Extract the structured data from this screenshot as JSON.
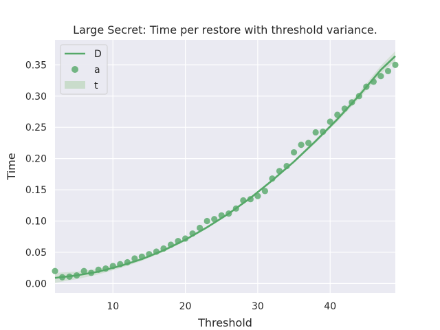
{
  "chart_data": {
    "type": "scatter",
    "title": "Large Secret: Time per restore with threshold variance.",
    "xlabel": "Threshold",
    "ylabel": "Time",
    "xlim": [
      2,
      49
    ],
    "ylim": [
      -0.015,
      0.39
    ],
    "xticks": [
      10,
      20,
      30,
      40
    ],
    "yticks": [
      0.0,
      0.05,
      0.1,
      0.15,
      0.2,
      0.25,
      0.3,
      0.35
    ],
    "ytick_labels": [
      "0.00",
      "0.05",
      "0.10",
      "0.15",
      "0.20",
      "0.25",
      "0.30",
      "0.35"
    ],
    "grid": true,
    "legend_position": "top-left",
    "colors": {
      "series": "#55a868",
      "band": "#c9dccb",
      "background": "#eaeaf2",
      "grid": "#ffffff"
    },
    "legend": [
      {
        "label": "D",
        "kind": "line"
      },
      {
        "label": "a",
        "kind": "marker"
      },
      {
        "label": "t",
        "kind": "band"
      }
    ],
    "series": [
      {
        "kind": "points",
        "x": [
          2,
          3,
          4,
          5,
          6,
          7,
          8,
          9,
          10,
          11,
          12,
          13,
          14,
          15,
          16,
          17,
          18,
          19,
          20,
          21,
          22,
          23,
          24,
          25,
          26,
          27,
          28,
          29,
          30,
          31,
          32,
          33,
          34,
          35,
          36,
          37,
          38,
          39,
          40,
          41,
          42,
          43,
          44,
          45,
          46,
          47,
          48,
          49
        ],
        "y": [
          0.02,
          0.01,
          0.011,
          0.013,
          0.02,
          0.017,
          0.022,
          0.024,
          0.028,
          0.031,
          0.034,
          0.04,
          0.043,
          0.047,
          0.051,
          0.056,
          0.062,
          0.068,
          0.072,
          0.08,
          0.089,
          0.1,
          0.103,
          0.109,
          0.112,
          0.12,
          0.133,
          0.135,
          0.14,
          0.148,
          0.168,
          0.18,
          0.188,
          0.21,
          0.222,
          0.225,
          0.242,
          0.243,
          0.259,
          0.27,
          0.28,
          0.29,
          0.3,
          0.315,
          0.323,
          0.332,
          0.34,
          0.35
        ]
      },
      {
        "kind": "fit",
        "x": [
          2,
          5,
          8,
          11,
          14,
          17,
          20,
          23,
          26,
          29,
          32,
          35,
          38,
          41,
          44,
          47,
          49
        ],
        "y": [
          0.009,
          0.013,
          0.019,
          0.028,
          0.039,
          0.053,
          0.07,
          0.09,
          0.112,
          0.137,
          0.165,
          0.195,
          0.228,
          0.263,
          0.301,
          0.342,
          0.364
        ]
      }
    ]
  }
}
